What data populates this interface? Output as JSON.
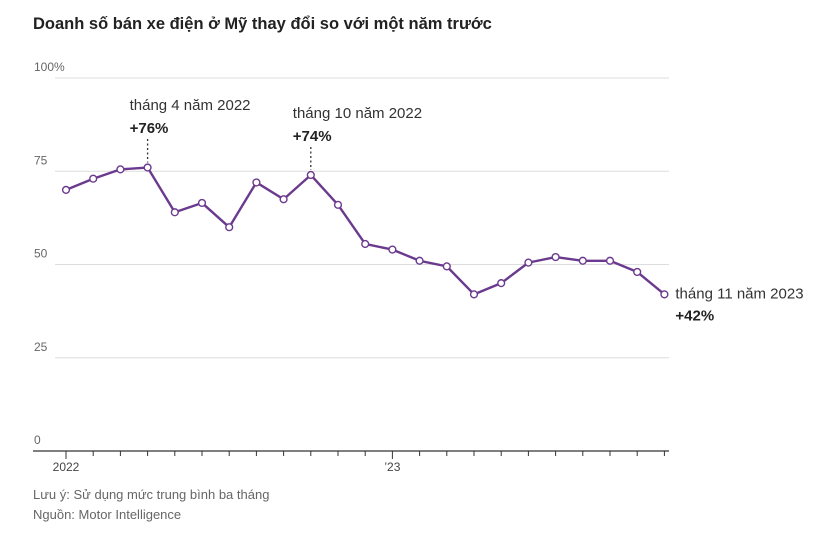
{
  "title": "Doanh số bán xe điện ở Mỹ thay đổi so với một năm trước",
  "chart_data": {
    "type": "line",
    "title": "Doanh số bán xe điện ở Mỹ thay đổi so với một năm trước",
    "xlabel": "",
    "ylabel": "",
    "ylim": [
      0,
      100
    ],
    "yticks": [
      {
        "value": 100,
        "label": "100%"
      },
      {
        "value": 75,
        "label": "75"
      },
      {
        "value": 50,
        "label": "50"
      },
      {
        "value": 25,
        "label": "25"
      },
      {
        "value": 0,
        "label": "0"
      }
    ],
    "xtick_labels": [
      {
        "index": 0,
        "label": "2022"
      },
      {
        "index": 12,
        "label": "’23"
      }
    ],
    "x": [
      "2022-01",
      "2022-02",
      "2022-03",
      "2022-04",
      "2022-05",
      "2022-06",
      "2022-07",
      "2022-08",
      "2022-09",
      "2022-10",
      "2022-11",
      "2022-12",
      "2023-01",
      "2023-02",
      "2023-03",
      "2023-04",
      "2023-05",
      "2023-06",
      "2023-07",
      "2023-08",
      "2023-09",
      "2023-10",
      "2023-11"
    ],
    "series": [
      {
        "name": "Doanh số bán xe điện ở Mỹ",
        "color": "#6b3a8e",
        "values": [
          70,
          73,
          75.5,
          76,
          64,
          66.5,
          60,
          72,
          67.5,
          74,
          66,
          55.5,
          54,
          51,
          49.5,
          42,
          45,
          50.5,
          52,
          51,
          51,
          48,
          42
        ]
      }
    ],
    "annotations": [
      {
        "index": 3,
        "label": "tháng 4 năm 2022",
        "value_text": "+76%"
      },
      {
        "index": 9,
        "label": "tháng 10 năm 2022",
        "value_text": "+74%"
      },
      {
        "index": 22,
        "label": "tháng 11 năm 2023",
        "value_text": "+42%"
      }
    ]
  },
  "footer": {
    "note": "Lưu ý: Sử dụng mức trung bình ba tháng",
    "source": "Nguồn: Motor Intelligence"
  }
}
